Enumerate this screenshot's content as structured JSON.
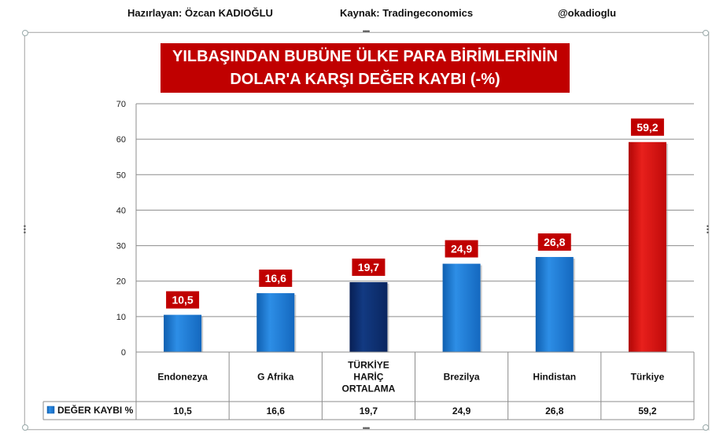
{
  "header": {
    "prepared_by": "Hazırlayan: Özcan KADIOĞLU",
    "source": "Kaynak: Tradingeconomics",
    "handle": "@okadioglu"
  },
  "chart_data": {
    "type": "bar",
    "title": "YILBAŞINDAN BUBÜNE ÜLKE PARA BİRİMLERİNİN\nDOLAR'A KARŞI  DEĞER KAYBI (-%)",
    "categories": [
      "Endonezya",
      "G Afrika",
      "TÜRKİYE HARİÇ ORTALAMA",
      "Brezilya",
      "Hindistan",
      "Türkiye"
    ],
    "category_lines": [
      [
        "Endonezya"
      ],
      [
        "G Afrika"
      ],
      [
        "TÜRKİYE",
        "HARİÇ",
        "ORTALAMA"
      ],
      [
        "Brezilya"
      ],
      [
        "Hindistan"
      ],
      [
        "Türkiye"
      ]
    ],
    "series": [
      {
        "name": "DEĞER KAYBI %",
        "values": [
          10.5,
          16.6,
          19.7,
          24.9,
          26.8,
          59.2
        ]
      }
    ],
    "data_labels": [
      "10,5",
      "16,6",
      "19,7",
      "24,9",
      "26,8",
      "59,2"
    ],
    "bar_colors": [
      "#1f7fd6",
      "#1f7fd6",
      "#0b2a6b",
      "#1f7fd6",
      "#1f7fd6",
      "#d40b0b"
    ],
    "label_color": "#c00000",
    "ylim": [
      0,
      70
    ],
    "yticks": [
      0,
      10,
      20,
      30,
      40,
      50,
      60,
      70
    ],
    "grid": true,
    "legend": "data-table"
  }
}
